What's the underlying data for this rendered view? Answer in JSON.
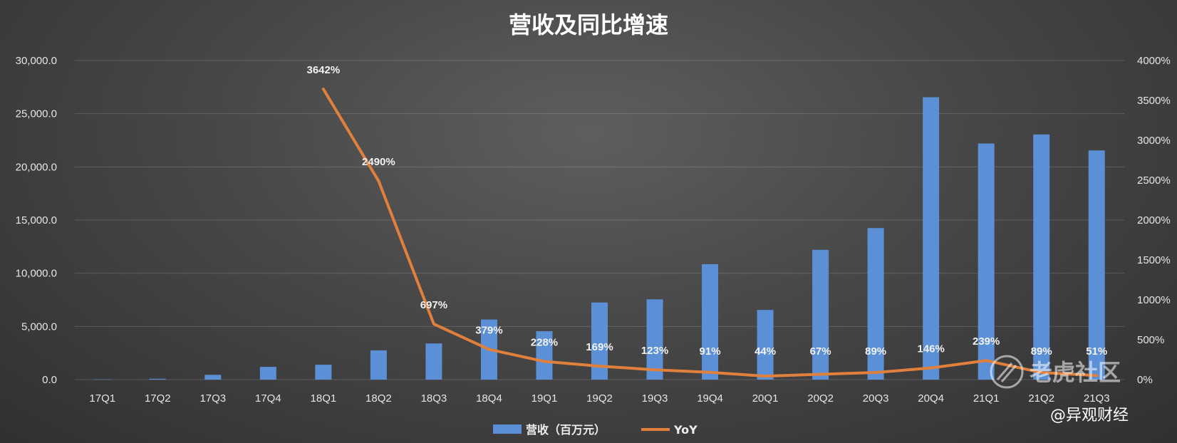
{
  "chart_data": {
    "type": "bar",
    "title": "营收及同比增速",
    "categories": [
      "17Q1",
      "17Q2",
      "17Q3",
      "17Q4",
      "18Q1",
      "18Q2",
      "18Q3",
      "18Q4",
      "19Q1",
      "19Q2",
      "19Q3",
      "19Q4",
      "20Q1",
      "20Q2",
      "20Q3",
      "20Q4",
      "21Q1",
      "21Q2",
      "21Q3"
    ],
    "series": [
      {
        "name": "营收（百万元）",
        "type": "bar",
        "axis": "left",
        "color": "#5b8fd6",
        "values": [
          20,
          80,
          450,
          1200,
          1400,
          2750,
          3400,
          5650,
          4550,
          7250,
          7550,
          10850,
          6550,
          12200,
          14250,
          26550,
          22200,
          23050,
          21550
        ]
      },
      {
        "name": "YoY",
        "type": "line",
        "axis": "right",
        "color": "#e0803c",
        "values": [
          null,
          null,
          null,
          null,
          3642,
          2490,
          697,
          379,
          228,
          169,
          123,
          91,
          44,
          67,
          89,
          146,
          239,
          89,
          51
        ],
        "labels": [
          null,
          null,
          null,
          null,
          "3642%",
          "2490%",
          "697%",
          "379%",
          "228%",
          "169%",
          "123%",
          "91%",
          "44%",
          "67%",
          "89%",
          "146%",
          "239%",
          "89%",
          "51%"
        ]
      }
    ],
    "y_left": {
      "range": [
        0,
        30000
      ],
      "ticks": [
        0,
        5000,
        10000,
        15000,
        20000,
        25000,
        30000
      ],
      "tick_labels": [
        "0.0",
        "5,000.0",
        "10,000.0",
        "15,000.0",
        "20,000.0",
        "25,000.0",
        "30,000.0"
      ]
    },
    "y_right": {
      "range": [
        0,
        4000
      ],
      "ticks": [
        0,
        500,
        1000,
        1500,
        2000,
        2500,
        3000,
        3500,
        4000
      ],
      "tick_labels": [
        "0%",
        "500%",
        "1000%",
        "1500%",
        "2000%",
        "2500%",
        "3000%",
        "3500%",
        "4000%"
      ]
    },
    "grid": true,
    "legend": {
      "position": "bottom",
      "entries": [
        "营收（百万元）",
        "YoY"
      ]
    }
  },
  "watermark": {
    "text": "老虎社区",
    "credit": "@异观财经",
    "icon": "tiger-logo-icon"
  }
}
